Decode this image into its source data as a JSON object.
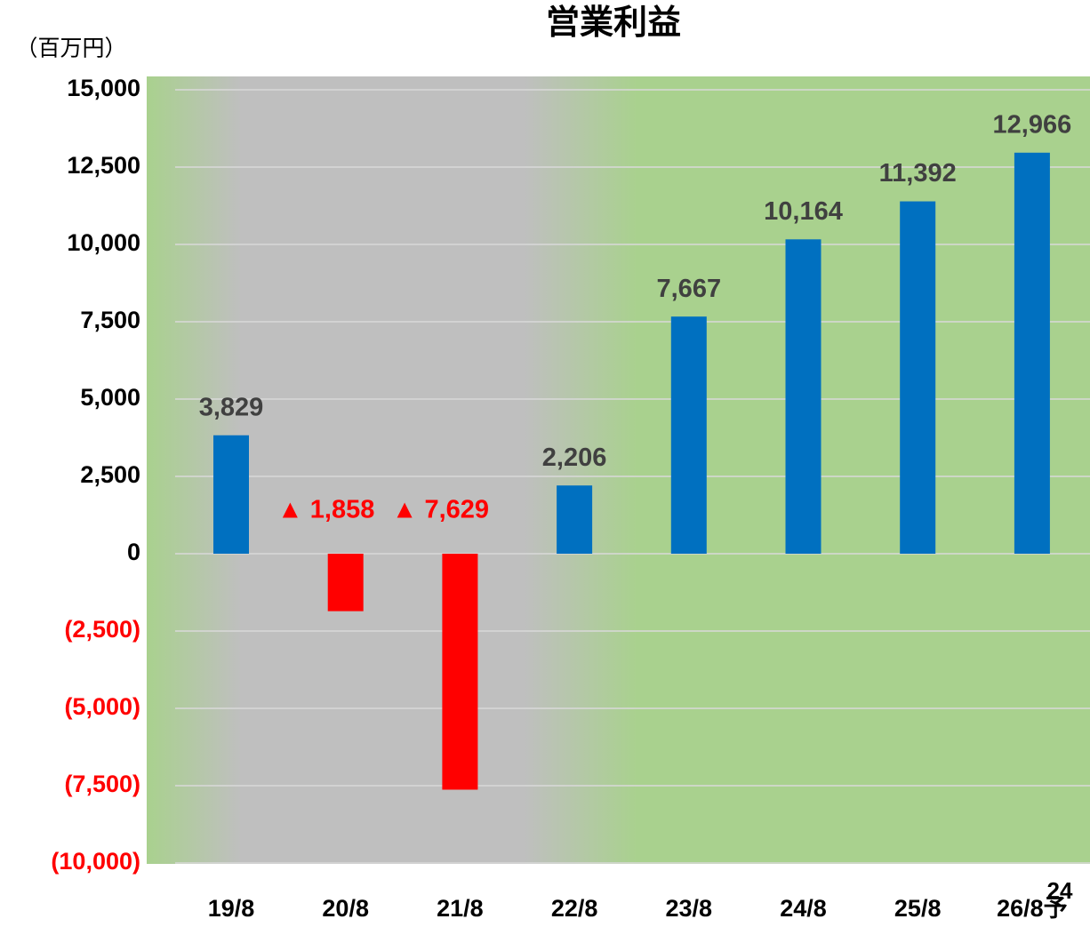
{
  "chart_data": {
    "type": "bar",
    "title": "営業利益",
    "y_label": "（百万円）",
    "categories": [
      "19/8",
      "20/8",
      "21/8",
      "22/8",
      "23/8",
      "24/8",
      "25/8",
      "26/8予"
    ],
    "values": [
      3829,
      -1858,
      -7629,
      2206,
      7667,
      10164,
      11392,
      12966
    ],
    "value_labels": [
      "3,829",
      "▲ 1,858",
      "▲ 7,629",
      "2,206",
      "7,667",
      "10,164",
      "11,392",
      "12,966"
    ],
    "colors": [
      "#0070c0",
      "#ff0000",
      "#ff0000",
      "#0070c0",
      "#0070c0",
      "#0070c0",
      "#0070c0",
      "#0070c0"
    ],
    "ylim": [
      -10000,
      15000
    ],
    "yticks": [
      {
        "value": -10000,
        "label": "(10,000)"
      },
      {
        "value": -7500,
        "label": "(7,500)"
      },
      {
        "value": -5000,
        "label": "(5,000)"
      },
      {
        "value": -2500,
        "label": "(2,500)"
      },
      0,
      {
        "value": 2500,
        "label": "2,500"
      },
      {
        "value": 5000,
        "label": "5,000"
      },
      {
        "value": 7500,
        "label": "7,500"
      },
      {
        "value": 10000,
        "label": "10,000"
      },
      {
        "value": 12500,
        "label": "12,500"
      },
      {
        "value": 15000,
        "label": "15,000"
      }
    ],
    "grid": true
  },
  "page_number": "24"
}
